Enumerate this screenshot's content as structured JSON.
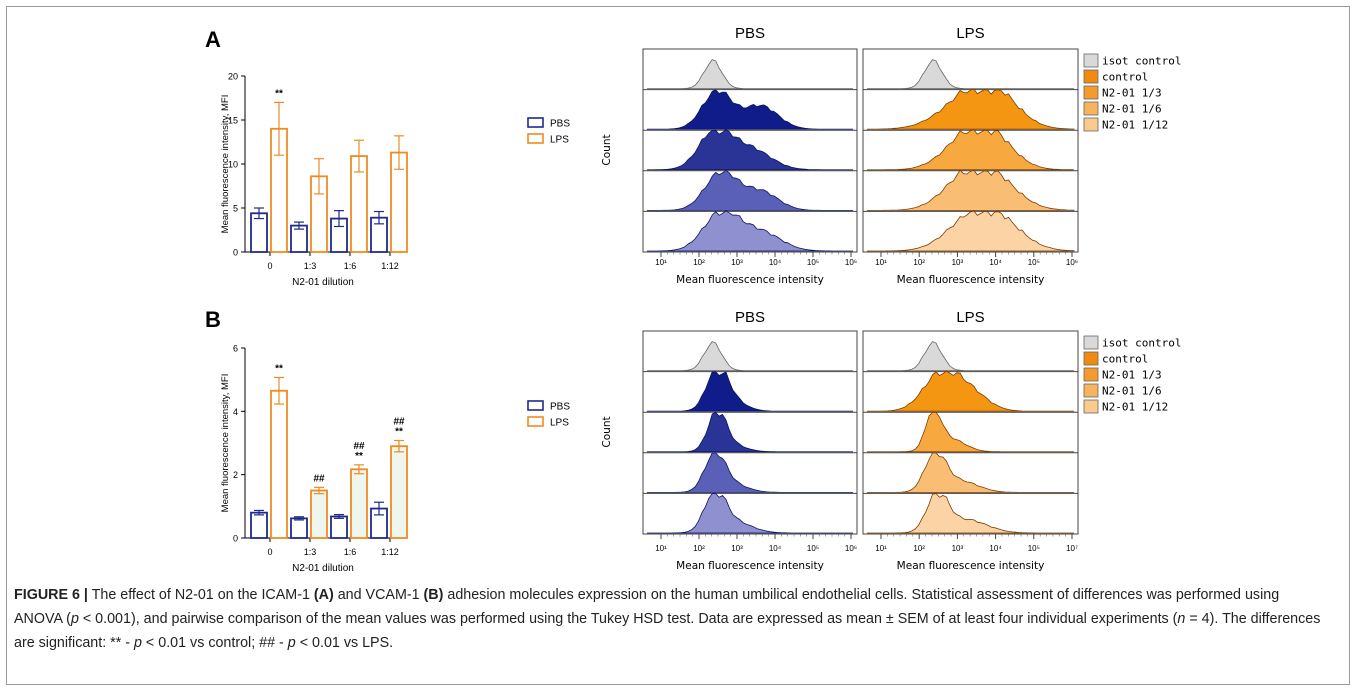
{
  "panels": {
    "a_label": "A",
    "b_label": "B"
  },
  "colors": {
    "pbs_dark": "#1f2a8c",
    "lps_orange": "#f08a24",
    "isot_gray": "#d9d9d9",
    "hist_pbs": [
      "#101c8a",
      "#2a3396",
      "#5a5fb8",
      "#8e90cf"
    ],
    "hist_lps": [
      "#f59613",
      "#f7a83f",
      "#f9be74",
      "#fbd3a4"
    ]
  },
  "chart_data": [
    {
      "type": "bar",
      "panel": "A",
      "categories": [
        "0",
        "1:3",
        "1:6",
        "1:12"
      ],
      "series": [
        {
          "name": "PBS",
          "values": [
            4.4,
            3.0,
            3.8,
            3.9
          ],
          "errors": [
            0.6,
            0.4,
            0.9,
            0.7
          ]
        },
        {
          "name": "LPS",
          "values": [
            14.0,
            8.6,
            10.9,
            11.3
          ],
          "errors": [
            3.0,
            2.0,
            1.8,
            1.9
          ]
        }
      ],
      "ylim": [
        0,
        20
      ],
      "yticks": [
        "0",
        "5",
        "10",
        "15",
        "20"
      ],
      "ylabel": "Mean fluorescence intensity, MFI",
      "xlabel": "N2-01 dilution",
      "annotations": [
        "**",
        "",
        "",
        ""
      ],
      "legend": [
        "PBS",
        "LPS"
      ]
    },
    {
      "type": "bar",
      "panel": "B",
      "categories": [
        "0",
        "1:3",
        "1:6",
        "1:12"
      ],
      "series": [
        {
          "name": "PBS",
          "values": [
            0.8,
            0.62,
            0.68,
            0.93
          ],
          "errors": [
            0.07,
            0.05,
            0.06,
            0.2
          ]
        },
        {
          "name": "LPS",
          "values": [
            4.65,
            1.5,
            2.17,
            2.9
          ],
          "errors": [
            0.42,
            0.1,
            0.14,
            0.18
          ]
        }
      ],
      "ylim": [
        0,
        6
      ],
      "yticks": [
        "0",
        "2",
        "4",
        "6"
      ],
      "ylabel": "Mean fluorescence intensity, MFI",
      "xlabel": "N2-01 dilution",
      "annotations": [
        [
          "**"
        ],
        [
          "##"
        ],
        [
          "##",
          "**"
        ],
        [
          "##",
          "**"
        ]
      ],
      "legend": [
        "PBS",
        "LPS"
      ]
    }
  ],
  "histograms": {
    "count_label": "Count",
    "x_label": "Mean fluorescence intensity",
    "ticks_a": [
      "10¹",
      "10²",
      "10³",
      "10⁴",
      "10⁵",
      "10⁶"
    ],
    "ticks_b_pbs": [
      "10¹",
      "10²",
      "10³",
      "10⁴",
      "10⁵",
      "10⁶"
    ],
    "ticks_b_lps": [
      "10¹",
      "10²",
      "10³",
      "10⁴",
      "10⁵",
      "10⁷"
    ],
    "titles": [
      "PBS",
      "LPS"
    ],
    "legend": [
      "isot control",
      "control",
      "N2-01 1/3",
      "N2-01 1/6",
      "N2-01 1/12"
    ]
  },
  "caption": {
    "fig_label": "FIGURE 6 |",
    "t1": " The effect of N2-01 on the ICAM-1 ",
    "a": "(A)",
    "t2": " and VCAM-1 ",
    "b": "(B)",
    "t3": " adhesion molecules expression on the human umbilical endothelial cells. Statistical assessment of differences was performed using ANOVA (",
    "p1": "p",
    "t4": " < 0.001), and pairwise comparison of the mean values was performed using the Tukey HSD test. Data are expressed as mean ± SEM of at least four individual experiments (",
    "n": "n",
    "t5": " = 4). The differences are significant: ** - ",
    "p2": "p",
    "t6": " < 0.01 vs control; ## - ",
    "p3": "p",
    "t7": " < 0.01 vs LPS."
  }
}
